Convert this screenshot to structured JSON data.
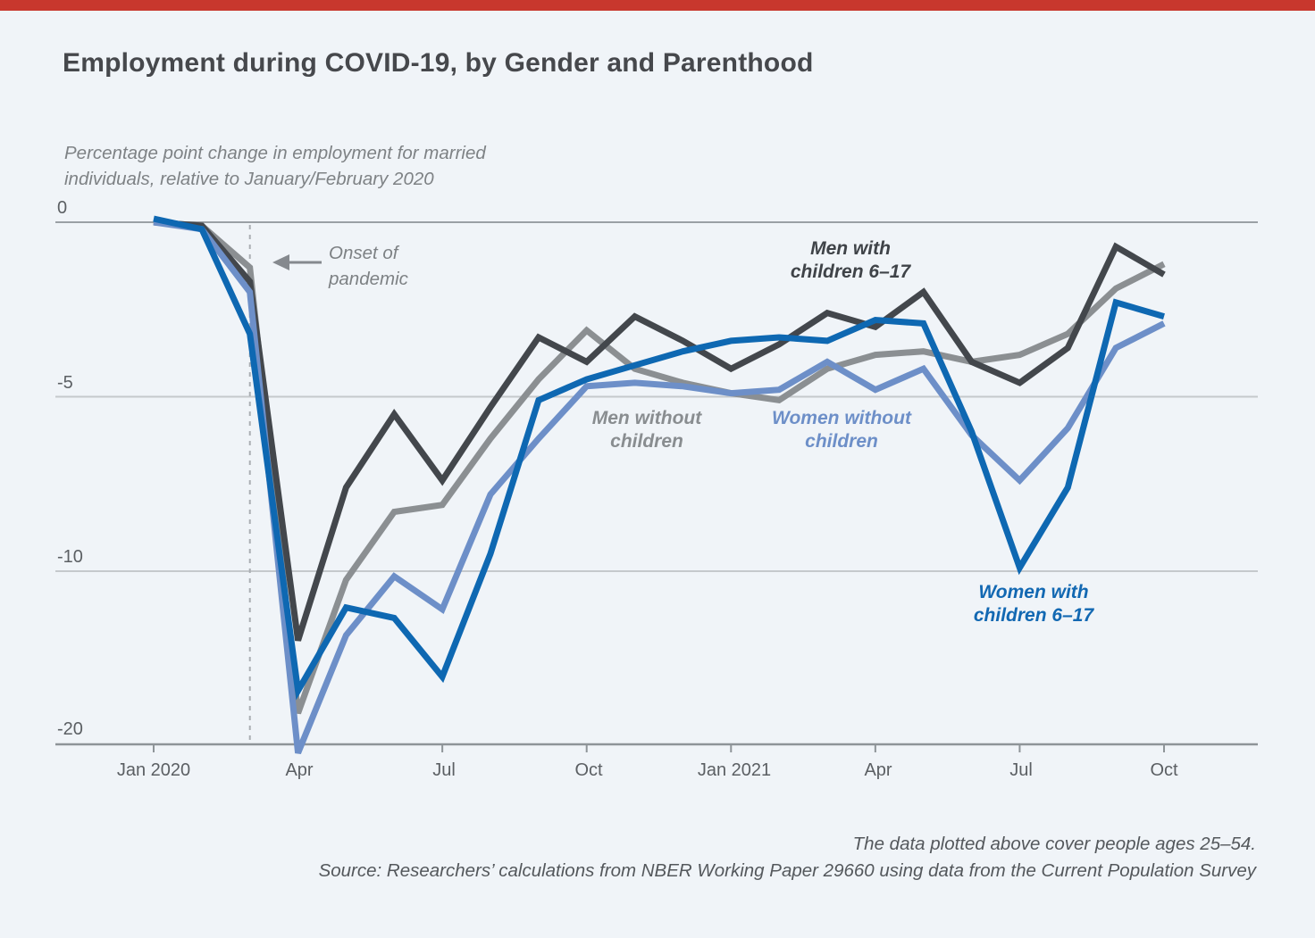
{
  "page": {
    "title": "Employment during COVID-19, by Gender and Parenthood",
    "subtitle": "Percentage point change in employment for married\nindividuals, relative to January/February 2020",
    "footer_line1": "The data plotted above cover people ages 25–54.",
    "footer_line2": "Source: Researchers’ calculations from NBER Working Paper 29660 using data from the Current Population Survey",
    "top_bar_color": "#c8372d",
    "background_color": "#f0f4f8"
  },
  "annotation": {
    "text": "Onset of\npandemic",
    "arrow_icon": "left-arrow",
    "arrow_color": "#85898e",
    "dashed_line_color": "#aaaeb3",
    "dashed_line_month_index": 2
  },
  "axes": {
    "y_tick_labels": [
      "0",
      "-5",
      "-10",
      "-20"
    ],
    "y_tick_values": [
      0,
      -5,
      -10,
      -20
    ],
    "y_scale_note": "axis compressed to half spacing below -10",
    "x_tick_labels": [
      "Jan 2020",
      "Apr",
      "Jul",
      "Oct",
      "Jan 2021",
      "Apr",
      "Jul",
      "Oct"
    ],
    "x_tick_month_indices": [
      0,
      3,
      6,
      9,
      12,
      15,
      18,
      21
    ],
    "gridline_color": "#c5c9cc",
    "zero_line_color": "#9aa0a5",
    "axis_line_color": "#8e9498"
  },
  "chart_data": {
    "type": "line",
    "x": [
      "Jan 2020",
      "Feb 2020",
      "Mar 2020",
      "Apr 2020",
      "May 2020",
      "Jun 2020",
      "Jul 2020",
      "Aug 2020",
      "Sep 2020",
      "Oct 2020",
      "Nov 2020",
      "Dec 2020",
      "Jan 2021",
      "Feb 2021",
      "Mar 2021",
      "Apr 2021",
      "May 2021",
      "Jun 2021",
      "Jul 2021",
      "Aug 2021",
      "Sep 2021",
      "Oct 2021"
    ],
    "xlabel": "",
    "ylabel": "Percentage point change in employment",
    "ylim": [
      -21.5,
      0.5
    ],
    "grid": "horizontal only",
    "legend_position": "labels next to lines",
    "series": [
      {
        "id": "men_without_children",
        "label": "Men without\nchildren",
        "color": "#8b8f92",
        "values": [
          0,
          -0.1,
          -1.3,
          -18.2,
          -10.5,
          -8.3,
          -8.1,
          -6.2,
          -4.5,
          -3.1,
          -4.2,
          -4.6,
          -4.9,
          -5.1,
          -4.2,
          -3.8,
          -3.7,
          -4.0,
          -3.8,
          -3.2,
          -1.9,
          -1.2
        ]
      },
      {
        "id": "men_with_children_6_17",
        "label": "Men with\nchildren 6–17",
        "color": "#43474c",
        "values": [
          0,
          -0.1,
          -1.7,
          -14.0,
          -7.6,
          -5.5,
          -7.4,
          -5.3,
          -3.3,
          -4.0,
          -2.7,
          -3.4,
          -4.2,
          -3.5,
          -2.6,
          -3.0,
          -2.0,
          -4.0,
          -4.6,
          -3.6,
          -0.7,
          -1.5
        ]
      },
      {
        "id": "women_without_children",
        "label": "Women without\nchildren",
        "color": "#6d8fc8",
        "values": [
          0,
          -0.2,
          -2.0,
          -20.5,
          -13.7,
          -10.3,
          -12.2,
          -7.8,
          -6.2,
          -4.7,
          -4.6,
          -4.7,
          -4.9,
          -4.8,
          -4.0,
          -4.8,
          -4.2,
          -6.1,
          -7.4,
          -5.9,
          -3.6,
          -2.9
        ]
      },
      {
        "id": "women_with_children_6_17",
        "label": "Women with\nchildren 6–17",
        "color": "#0e68b2",
        "values": [
          0.1,
          -0.2,
          -3.2,
          -16.9,
          -12.1,
          -12.7,
          -16.1,
          -9.5,
          -5.1,
          -4.5,
          -4.1,
          -3.7,
          -3.4,
          -3.3,
          -3.4,
          -2.8,
          -2.9,
          -6.0,
          -9.9,
          -7.6,
          -2.3,
          -2.7
        ]
      }
    ]
  }
}
